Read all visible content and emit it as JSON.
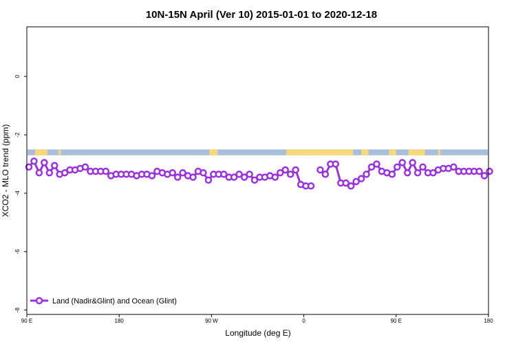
{
  "chart_data": {
    "type": "line",
    "title": "10N-15N April (Ver 10)   2015-01-01 to 2020-12-18",
    "xlabel": "Longitude (deg E)",
    "ylabel": "XCO2 - MLO trend (ppm)",
    "x_ticks": [
      {
        "value": 90,
        "label": "90 E"
      },
      {
        "value": 180,
        "label": "180"
      },
      {
        "value": 270,
        "label": "90 W"
      },
      {
        "value": 360,
        "label": "0"
      },
      {
        "value": 450,
        "label": "90 E"
      },
      {
        "value": 540,
        "label": "180"
      }
    ],
    "y_ticks": [
      {
        "value": 0,
        "label": "0"
      },
      {
        "value": -2,
        "label": "-2"
      },
      {
        "value": -4,
        "label": "-4"
      },
      {
        "value": -6,
        "label": "-6"
      },
      {
        "value": -8,
        "label": "-8"
      }
    ],
    "xlim": [
      90,
      540
    ],
    "ylim": [
      -8.15,
      1.7
    ],
    "legend": {
      "label": "Land (Nadir&Glint) and Ocean (Glint)",
      "position": "bottom-left"
    },
    "colors": {
      "series": "#9b30e0",
      "ocean": "#a8bedd",
      "land": "#f7d97a"
    },
    "map_strip": {
      "y_top": -2.5,
      "y_bottom": -2.7,
      "land_segments": [
        [
          98,
          110
        ],
        [
          121,
          123
        ],
        [
          268,
          276
        ],
        [
          343,
          408
        ],
        [
          416,
          423
        ],
        [
          443,
          450
        ],
        [
          462,
          478
        ],
        [
          491,
          493
        ]
      ]
    },
    "series": [
      {
        "segments": [
          {
            "x": [
              92,
              97,
              102,
              107,
              112,
              117,
              122,
              127,
              132,
              137,
              142,
              147,
              152,
              157,
              162,
              167,
              172,
              177,
              182,
              187,
              192,
              197,
              202,
              207,
              212,
              217,
              222,
              227,
              232,
              237,
              242,
              247,
              252,
              257,
              262,
              267,
              272,
              277,
              282,
              287,
              292,
              297,
              302,
              307,
              312,
              317,
              322,
              327,
              332,
              337,
              342,
              347,
              352,
              357,
              362,
              367
            ],
            "y": [
              -3.1,
              -2.9,
              -3.3,
              -2.95,
              -3.3,
              -3.05,
              -3.35,
              -3.3,
              -3.2,
              -3.2,
              -3.15,
              -3.1,
              -3.25,
              -3.25,
              -3.25,
              -3.25,
              -3.4,
              -3.35,
              -3.35,
              -3.35,
              -3.35,
              -3.4,
              -3.35,
              -3.35,
              -3.4,
              -3.25,
              -3.3,
              -3.35,
              -3.3,
              -3.45,
              -3.3,
              -3.4,
              -3.45,
              -3.25,
              -3.3,
              -3.55,
              -3.35,
              -3.35,
              -3.35,
              -3.45,
              -3.45,
              -3.35,
              -3.45,
              -3.35,
              -3.55,
              -3.45,
              -3.45,
              -3.4,
              -3.45,
              -3.3,
              -3.2,
              -3.35,
              -3.2,
              -3.7,
              -3.75,
              -3.75
            ]
          },
          {
            "x": [
              376,
              381,
              386,
              391,
              396,
              401,
              406,
              411,
              416,
              421,
              426,
              431,
              436,
              441,
              446,
              451,
              456,
              461,
              466,
              471,
              476,
              481,
              486,
              491,
              496,
              501,
              506,
              511,
              516,
              521,
              526,
              531,
              536,
              541
            ],
            "y": [
              -3.2,
              -3.35,
              -3.0,
              -3.0,
              -3.65,
              -3.65,
              -3.75,
              -3.6,
              -3.5,
              -3.35,
              -3.1,
              -3.0,
              -3.25,
              -3.3,
              -3.35,
              -3.1,
              -2.95,
              -3.3,
              -2.95,
              -3.3,
              -3.1,
              -3.3,
              -3.3,
              -3.2,
              -3.15,
              -3.15,
              -3.1,
              -3.25,
              -3.25,
              -3.25,
              -3.25,
              -3.25,
              -3.4,
              -3.25
            ]
          }
        ]
      }
    ]
  }
}
